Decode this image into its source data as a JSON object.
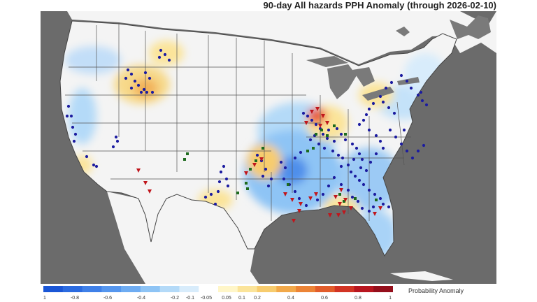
{
  "title": "90-day All hazards PPH Anomaly (through 2026-02-10)",
  "legend": {
    "title": "Probability Anomaly",
    "ticks": [
      "1",
      "-0.8",
      "-0.6",
      "-0.4",
      "-0.2",
      "-0.1",
      "-0.05",
      "0.05",
      "0.1",
      "0.2",
      "0.4",
      "0.6",
      "0.8",
      "1"
    ],
    "colors": [
      "#1a56d6",
      "#2b6be0",
      "#3f80e8",
      "#5596ee",
      "#6eacf2",
      "#8ec4f5",
      "#b4daf8",
      "#d8ecfb",
      "#ffffff",
      "#fff6c8",
      "#fbe49a",
      "#f7cc6e",
      "#f2a94a",
      "#ec8436",
      "#e25d2b",
      "#d23424",
      "#b8161f",
      "#950f1c"
    ]
  },
  "colors": {
    "ocean": "#6b6b6b",
    "land": "#f4f4f4",
    "state_border": "#555555",
    "report_dot": "#1c1ca0",
    "hail_square": "#1e6b1e",
    "tornado_triangle": "#c0161c"
  },
  "map_symbols": {
    "report_dot": "blue circle",
    "hail_report": "green square",
    "tornado_report": "red triangle"
  }
}
